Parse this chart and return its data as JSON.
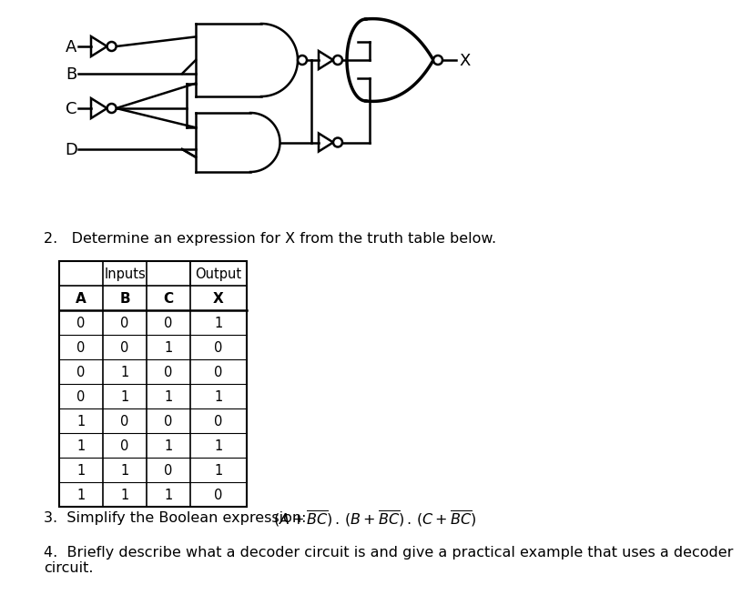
{
  "bg_color": "#ffffff",
  "line_color": "#000000",
  "question2": "2.   Determine an expression for X from the truth table below.",
  "table": {
    "col_headers": [
      "A",
      "B",
      "C",
      "X"
    ],
    "rows": [
      [
        0,
        0,
        0,
        1
      ],
      [
        0,
        0,
        1,
        0
      ],
      [
        0,
        1,
        0,
        0
      ],
      [
        0,
        1,
        1,
        1
      ],
      [
        1,
        0,
        0,
        0
      ],
      [
        1,
        0,
        1,
        1
      ],
      [
        1,
        1,
        0,
        1
      ],
      [
        1,
        1,
        1,
        0
      ]
    ]
  },
  "question4": "4.  Briefly describe what a decoder circuit is and give a practical example that uses a decoder\ncircuit."
}
